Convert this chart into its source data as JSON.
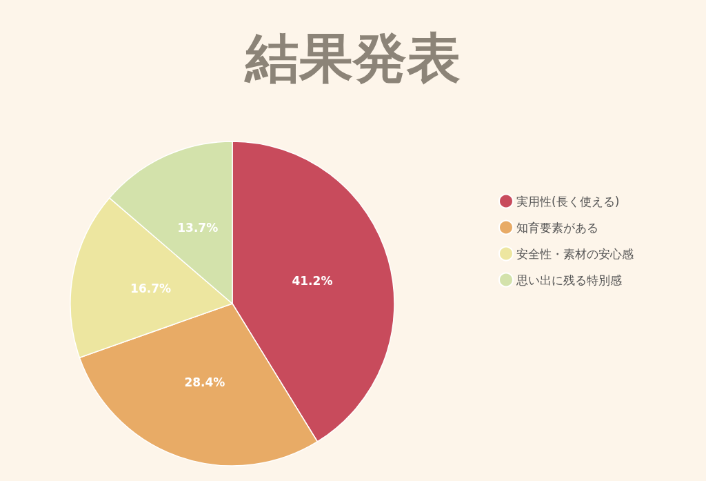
{
  "chart_data": {
    "type": "pie",
    "title": "結果発表",
    "categories": [
      "実用性(長く使える)",
      "知育要素がある",
      "安全性・素材の安心感",
      "思い出に残る特別感"
    ],
    "values": [
      41.2,
      28.4,
      16.7,
      13.7
    ],
    "colors": [
      "#c84b5c",
      "#e8ab66",
      "#ede6a0",
      "#d3e2ab"
    ],
    "value_labels": [
      "41.2%",
      "28.4%",
      "16.7%",
      "13.7%"
    ],
    "legend": "right"
  }
}
